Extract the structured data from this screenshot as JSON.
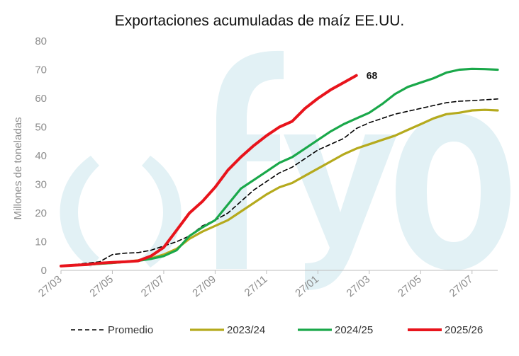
{
  "chart_data": {
    "type": "line",
    "title": "Exportaciones acumuladas de maíz EE.UU.",
    "xlabel": "",
    "ylabel": "Millones de toneladas",
    "ylim": [
      0,
      80
    ],
    "yticks": [
      0,
      10,
      20,
      30,
      40,
      50,
      60,
      70,
      80
    ],
    "xlim": [
      0,
      17
    ],
    "xticks": [
      {
        "pos": 0,
        "label": "27/03"
      },
      {
        "pos": 2,
        "label": "27/05"
      },
      {
        "pos": 4,
        "label": "27/07"
      },
      {
        "pos": 6,
        "label": "27/09"
      },
      {
        "pos": 8,
        "label": "27/11"
      },
      {
        "pos": 10,
        "label": "27/01"
      },
      {
        "pos": 12,
        "label": "27/03"
      },
      {
        "pos": 14,
        "label": "27/05"
      },
      {
        "pos": 16,
        "label": "27/07"
      }
    ],
    "grid": false,
    "legend_position": "bottom",
    "watermark": "fyo",
    "annotations": [
      {
        "text": "68",
        "series": "2025/26"
      }
    ],
    "series": [
      {
        "name": "Promedio",
        "color": "#000000",
        "style": "dashed",
        "x": [
          0,
          0.5,
          1,
          1.5,
          2,
          2.5,
          3,
          3.5,
          4,
          4.5,
          5,
          5.5,
          6,
          6.5,
          7,
          7.5,
          8,
          8.5,
          9,
          9.5,
          10,
          10.5,
          11,
          11.5,
          12,
          12.5,
          13,
          13.5,
          14,
          14.5,
          15,
          15.5,
          16,
          16.5,
          17
        ],
        "values": [
          1.5,
          2,
          2.5,
          3,
          5.5,
          6,
          6.2,
          7,
          8.5,
          10,
          12,
          15.5,
          17.5,
          20,
          24,
          28,
          31,
          34,
          36,
          39,
          42,
          44,
          46,
          49.5,
          51.5,
          53,
          54.5,
          55.5,
          56.5,
          57.5,
          58.5,
          59,
          59.2,
          59.5,
          59.8
        ]
      },
      {
        "name": "2023/24",
        "color": "#b5aa1d",
        "style": "solid",
        "x": [
          0,
          0.5,
          1,
          1.5,
          2,
          2.5,
          3,
          3.5,
          4,
          4.5,
          5,
          5.5,
          6,
          6.5,
          7,
          7.5,
          8,
          8.5,
          9,
          9.5,
          10,
          10.5,
          11,
          11.5,
          12,
          12.5,
          13,
          13.5,
          14,
          14.5,
          15,
          15.5,
          16,
          16.5,
          17
        ],
        "values": [
          1.5,
          1.8,
          2,
          2.3,
          2.6,
          3,
          3.5,
          4.2,
          5.5,
          7.5,
          11,
          13.5,
          15.5,
          17.5,
          20.5,
          23.5,
          26.5,
          29,
          30.5,
          33,
          35.5,
          38,
          40.5,
          42.5,
          44,
          45.5,
          47,
          49,
          51,
          53,
          54.5,
          55,
          55.8,
          56,
          55.8
        ]
      },
      {
        "name": "2024/25",
        "color": "#1aa84a",
        "style": "solid",
        "x": [
          0,
          0.5,
          1,
          1.5,
          2,
          2.5,
          3,
          3.5,
          4,
          4.5,
          5,
          5.5,
          6,
          6.5,
          7,
          7.5,
          8,
          8.5,
          9,
          9.5,
          10,
          10.5,
          11,
          11.5,
          12,
          12.5,
          13,
          13.5,
          14,
          14.5,
          15,
          15.5,
          16,
          16.5,
          17
        ],
        "values": [
          1.5,
          1.8,
          2,
          2.3,
          2.6,
          3,
          3.3,
          4,
          5,
          7,
          12,
          15,
          17.5,
          23,
          28.5,
          31.5,
          34.5,
          37.5,
          39.5,
          42.5,
          45.5,
          48.5,
          51,
          53,
          55,
          58,
          61.5,
          64,
          65.5,
          67,
          69,
          70,
          70.3,
          70.2,
          70
        ]
      },
      {
        "name": "2025/26",
        "color": "#e8141c",
        "style": "solid",
        "x": [
          0,
          0.5,
          1,
          1.5,
          2,
          2.5,
          3,
          3.5,
          4,
          4.5,
          5,
          5.5,
          6,
          6.5,
          7,
          7.5,
          8,
          8.5,
          9,
          9.5,
          10,
          10.5,
          11,
          11.5
        ],
        "values": [
          1.5,
          1.8,
          2,
          2.5,
          2.8,
          3,
          3.3,
          5,
          8,
          14,
          20,
          24,
          29,
          35,
          39.5,
          43.5,
          47,
          50,
          52,
          56.5,
          60,
          63,
          65.5,
          68
        ]
      }
    ]
  }
}
